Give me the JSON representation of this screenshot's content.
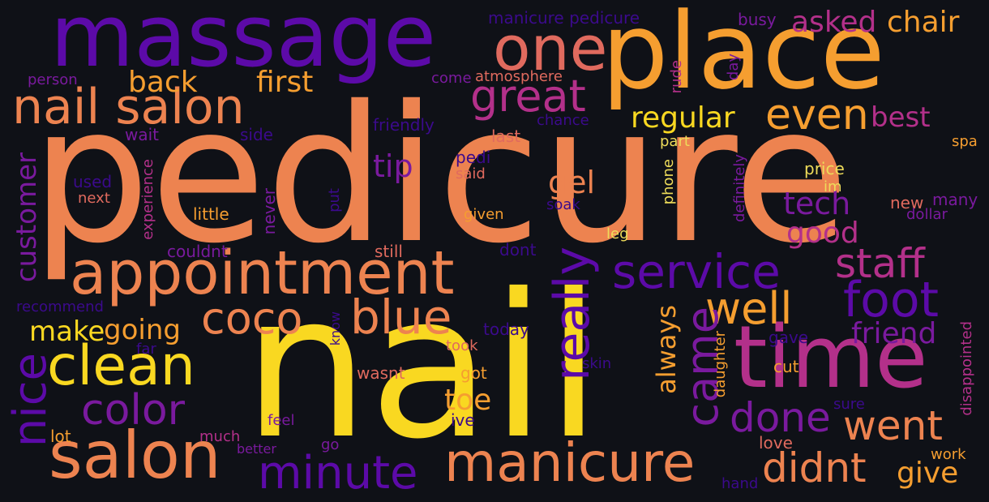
{
  "words": [
    {
      "text": "pedicure",
      "color": "orange",
      "size": "xl"
    },
    {
      "text": "nail",
      "color": "yellow",
      "size": "xl"
    },
    {
      "text": "massage",
      "color": "purple",
      "size": "l"
    },
    {
      "text": "place",
      "color": "amber",
      "size": "l"
    },
    {
      "text": "time",
      "color": "magenta",
      "size": "l"
    },
    {
      "text": "one",
      "color": "salmon",
      "size": "l"
    },
    {
      "text": "nail salon",
      "color": "orange",
      "size": "m"
    },
    {
      "text": "appointment",
      "color": "orange",
      "size": "l"
    },
    {
      "text": "salon",
      "color": "orange",
      "size": "l"
    },
    {
      "text": "clean",
      "color": "yellow",
      "size": "m"
    },
    {
      "text": "manicure",
      "color": "orange",
      "size": "m"
    },
    {
      "text": "great",
      "color": "magenta",
      "size": "m"
    },
    {
      "text": "coco",
      "color": "orange",
      "size": "m"
    },
    {
      "text": "blue",
      "color": "orange",
      "size": "m"
    },
    {
      "text": "service",
      "color": "purple",
      "size": "m"
    },
    {
      "text": "staff",
      "color": "magenta",
      "size": "m"
    },
    {
      "text": "foot",
      "color": "purple",
      "size": "m"
    },
    {
      "text": "went",
      "color": "orange",
      "size": "m"
    },
    {
      "text": "didnt",
      "color": "orange",
      "size": "m"
    },
    {
      "text": "minute",
      "color": "purple",
      "size": "m"
    },
    {
      "text": "color",
      "color": "purple",
      "size": "m"
    },
    {
      "text": "done",
      "color": "purple",
      "size": "m"
    },
    {
      "text": "well",
      "color": "amber",
      "size": "m"
    },
    {
      "text": "even",
      "color": "amber",
      "size": "m"
    },
    {
      "text": "really",
      "color": "purple",
      "size": "m"
    },
    {
      "text": "came",
      "color": "purple",
      "size": "m"
    },
    {
      "text": "nice",
      "color": "purple",
      "size": "m"
    },
    {
      "text": "back",
      "color": "amber",
      "size": "s"
    },
    {
      "text": "first",
      "color": "amber",
      "size": "s"
    },
    {
      "text": "regular",
      "color": "yellow",
      "size": "s"
    },
    {
      "text": "asked",
      "color": "magenta",
      "size": "s"
    },
    {
      "text": "chair",
      "color": "amber",
      "size": "s"
    },
    {
      "text": "best",
      "color": "magenta",
      "size": "s"
    },
    {
      "text": "tip",
      "color": "purple",
      "size": "s"
    },
    {
      "text": "gel",
      "color": "orange",
      "size": "s"
    },
    {
      "text": "tech",
      "color": "purple",
      "size": "s"
    },
    {
      "text": "good",
      "color": "magenta",
      "size": "s"
    },
    {
      "text": "friend",
      "color": "purple",
      "size": "s"
    },
    {
      "text": "make",
      "color": "yellow",
      "size": "s"
    },
    {
      "text": "going",
      "color": "amber",
      "size": "s"
    },
    {
      "text": "toe",
      "color": "amber",
      "size": "s"
    },
    {
      "text": "give",
      "color": "amber",
      "size": "s"
    },
    {
      "text": "always",
      "color": "amber",
      "size": "s"
    },
    {
      "text": "customer",
      "color": "purple",
      "size": "s"
    },
    {
      "text": "manicure pedicure",
      "color": "dark-purple",
      "size": "xs"
    },
    {
      "text": "busy",
      "color": "purple",
      "size": "xs"
    },
    {
      "text": "person",
      "color": "purple-magenta",
      "size": "xs"
    },
    {
      "text": "come",
      "color": "purple-magenta",
      "size": "xs"
    },
    {
      "text": "atmosphere",
      "color": "salmon",
      "size": "xs"
    },
    {
      "text": "rude",
      "color": "magenta",
      "size": "xs"
    },
    {
      "text": "day",
      "color": "purple-magenta",
      "size": "xs"
    },
    {
      "text": "friendly",
      "color": "dark-purple",
      "size": "xs"
    },
    {
      "text": "chance",
      "color": "dark-purple",
      "size": "xs"
    },
    {
      "text": "last",
      "color": "salmon",
      "size": "xs"
    },
    {
      "text": "wait",
      "color": "purple-magenta",
      "size": "xs"
    },
    {
      "text": "side",
      "color": "dark-purple",
      "size": "xs"
    },
    {
      "text": "part",
      "color": "light-yellow",
      "size": "xs"
    },
    {
      "text": "spa",
      "color": "amber",
      "size": "xs"
    },
    {
      "text": "pedi",
      "color": "dark-purple",
      "size": "xs"
    },
    {
      "text": "said",
      "color": "salmon",
      "size": "xs"
    },
    {
      "text": "used",
      "color": "dark-purple",
      "size": "xs"
    },
    {
      "text": "next",
      "color": "salmon",
      "size": "xs"
    },
    {
      "text": "experience",
      "color": "magenta",
      "size": "xs"
    },
    {
      "text": "little",
      "color": "amber",
      "size": "xs"
    },
    {
      "text": "put",
      "color": "dark-purple",
      "size": "xs"
    },
    {
      "text": "never",
      "color": "purple-magenta",
      "size": "xs"
    },
    {
      "text": "given",
      "color": "amber",
      "size": "xs"
    },
    {
      "text": "soak",
      "color": "dark-purple",
      "size": "xs"
    },
    {
      "text": "phone",
      "color": "light-yellow",
      "size": "xs"
    },
    {
      "text": "definitely",
      "color": "purple-magenta",
      "size": "xs"
    },
    {
      "text": "price",
      "color": "light-yellow",
      "size": "xs"
    },
    {
      "text": "im",
      "color": "light-yellow",
      "size": "xs"
    },
    {
      "text": "new",
      "color": "salmon",
      "size": "xs"
    },
    {
      "text": "many",
      "color": "purple-magenta",
      "size": "xs"
    },
    {
      "text": "dollar",
      "color": "purple-magenta",
      "size": "xs"
    },
    {
      "text": "couldnt",
      "color": "purple-magenta",
      "size": "xs"
    },
    {
      "text": "still",
      "color": "salmon",
      "size": "xs"
    },
    {
      "text": "dont",
      "color": "dark-purple",
      "size": "xs"
    },
    {
      "text": "leg",
      "color": "light-yellow",
      "size": "xs"
    },
    {
      "text": "recommend",
      "color": "dark-purple",
      "size": "xs"
    },
    {
      "text": "know",
      "color": "dark-purple",
      "size": "xs"
    },
    {
      "text": "today",
      "color": "dark-purple",
      "size": "xs"
    },
    {
      "text": "far",
      "color": "dark-purple",
      "size": "xs"
    },
    {
      "text": "took",
      "color": "salmon",
      "size": "xs"
    },
    {
      "text": "skin",
      "color": "dark-purple",
      "size": "xs"
    },
    {
      "text": "gave",
      "color": "dark-purple",
      "size": "xs"
    },
    {
      "text": "daughter",
      "color": "amber",
      "size": "xs"
    },
    {
      "text": "disappointed",
      "color": "magenta",
      "size": "xs"
    },
    {
      "text": "wasnt",
      "color": "salmon",
      "size": "xs"
    },
    {
      "text": "got",
      "color": "amber",
      "size": "xs"
    },
    {
      "text": "cut",
      "color": "amber",
      "size": "xs"
    },
    {
      "text": "sure",
      "color": "dark-purple",
      "size": "xs"
    },
    {
      "text": "feel",
      "color": "purple-magenta",
      "size": "xs"
    },
    {
      "text": "ive",
      "color": "dark-purple",
      "size": "xs"
    },
    {
      "text": "lot",
      "color": "amber",
      "size": "xs"
    },
    {
      "text": "much",
      "color": "magenta",
      "size": "xs"
    },
    {
      "text": "better",
      "color": "purple-magenta",
      "size": "xs"
    },
    {
      "text": "go",
      "color": "purple-magenta",
      "size": "xs"
    },
    {
      "text": "love",
      "color": "salmon",
      "size": "xs"
    },
    {
      "text": "work",
      "color": "amber",
      "size": "xs"
    },
    {
      "text": "hand",
      "color": "dark-purple",
      "size": "xs"
    }
  ],
  "palette": {
    "background": "#0f1117",
    "yellow": "#f9d821",
    "light-yellow": "#eedc5a",
    "orange": "#ed8350",
    "salmon": "#e06a5e",
    "amber": "#f59e30",
    "magenta": "#b3308a",
    "purple": "#5c0aa8",
    "purple-magenta": "#7a1a9e",
    "dark-purple": "#3b0a8c"
  }
}
